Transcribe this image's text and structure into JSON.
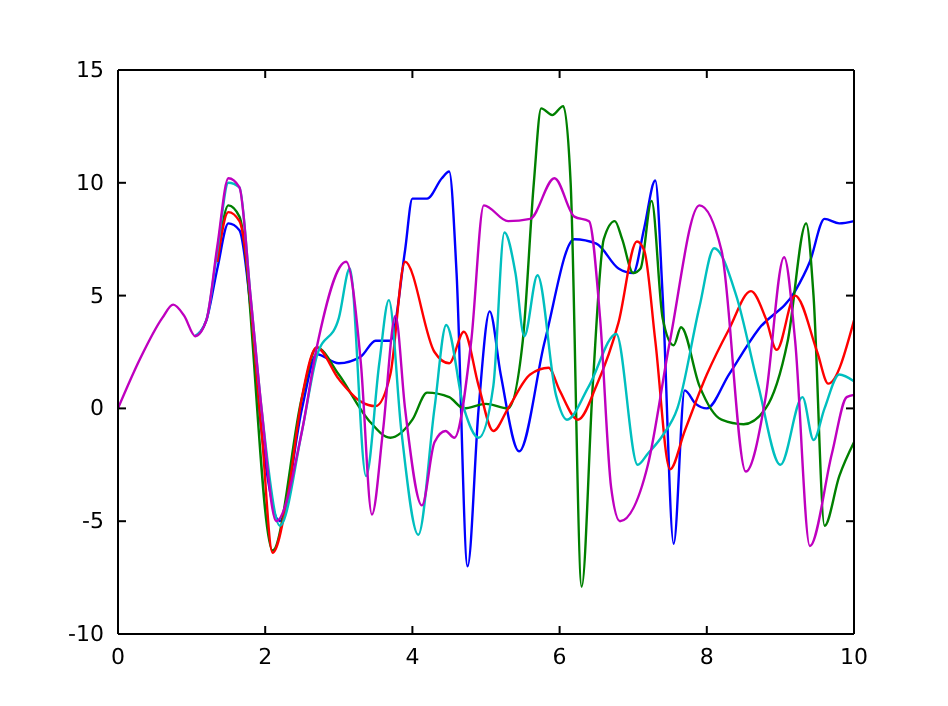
{
  "chart_data": {
    "type": "line",
    "xlim": [
      0,
      10
    ],
    "xticks": [
      0,
      2,
      4,
      6,
      8,
      10
    ],
    "ylim": [
      -10,
      15
    ],
    "yticks": [
      -10,
      -5,
      0,
      5,
      10,
      15
    ],
    "grid": false,
    "marker": "none",
    "line_style": "solid",
    "series": [
      {
        "color": "#0000ff",
        "x": [
          1.05,
          1.2,
          1.35,
          1.5,
          1.65,
          1.8,
          1.95,
          2.2,
          2.5,
          2.7,
          3.0,
          3.3,
          3.5,
          3.7,
          3.9,
          4.0,
          4.2,
          4.4,
          4.5,
          4.6,
          4.75,
          4.9,
          5.05,
          5.2,
          5.45,
          5.8,
          6.2,
          6.5,
          6.8,
          7.0,
          7.15,
          7.3,
          7.4,
          7.55,
          7.7,
          7.85,
          8.0,
          8.3,
          8.7,
          9.2,
          9.4,
          9.6,
          9.8,
          10
        ],
        "values": [
          3.2,
          3.9,
          6.2,
          8.2,
          7.9,
          4.5,
          -1,
          -5,
          0,
          2.4,
          2.0,
          2.3,
          3.0,
          3.0,
          7,
          9.3,
          9.3,
          10.2,
          10.5,
          6,
          -7,
          0,
          4.3,
          1.5,
          -1.9,
          3,
          7.5,
          7.3,
          6.2,
          6.0,
          8.0,
          10.1,
          5,
          -6,
          0.8,
          0.2,
          0.0,
          1.5,
          3.5,
          5.2,
          6.5,
          8.4,
          8.2,
          8.3
        ]
      },
      {
        "color": "#008000",
        "x": [
          1.35,
          1.5,
          1.65,
          2.1,
          2.5,
          2.7,
          3.0,
          3.4,
          3.7,
          4.0,
          4.2,
          4.5,
          4.7,
          5.0,
          5.3,
          5.5,
          5.65,
          5.75,
          5.9,
          6.05,
          6.15,
          6.3,
          6.45,
          6.6,
          6.75,
          6.85,
          7.0,
          7.1,
          7.25,
          7.4,
          7.55,
          7.65,
          7.9,
          8.2,
          8.5,
          8.8,
          9.1,
          9.35,
          9.45,
          9.6,
          9.8,
          10
        ],
        "values": [
          6.5,
          9.0,
          8.5,
          -6.3,
          0.5,
          2.7,
          1.5,
          -0.5,
          -1.3,
          -0.5,
          0.7,
          0.5,
          0,
          0.2,
          0,
          3,
          10,
          13.3,
          13.0,
          13.4,
          10,
          -7.9,
          1,
          7.5,
          8.3,
          7.5,
          6.0,
          6.2,
          9.2,
          4,
          2.8,
          3.6,
          1.0,
          -0.5,
          -0.7,
          0,
          3,
          8.2,
          5,
          -5.2,
          -3,
          -1.5
        ]
      },
      {
        "color": "#ff0000",
        "x": [
          1.35,
          1.5,
          1.65,
          1.95,
          2.1,
          2.3,
          2.5,
          2.7,
          3.0,
          3.3,
          3.5,
          3.7,
          3.9,
          4.3,
          4.5,
          4.7,
          4.9,
          5.1,
          5.3,
          5.6,
          5.85,
          6.0,
          6.25,
          6.5,
          6.8,
          7.05,
          7.15,
          7.3,
          7.5,
          7.7,
          8.0,
          8.3,
          8.6,
          8.8,
          8.95,
          9.2,
          9.5,
          9.65,
          10
        ],
        "values": [
          6.5,
          8.7,
          8.3,
          -1,
          -6.4,
          -4,
          0.5,
          2.7,
          1.3,
          0.3,
          0.1,
          1.5,
          6.5,
          2.5,
          2.0,
          3.4,
          1.0,
          -1.0,
          0,
          1.5,
          1.8,
          0.8,
          -0.5,
          1,
          3.8,
          7.4,
          7.0,
          3,
          -2.7,
          -1,
          1.5,
          3.5,
          5.2,
          4,
          2.6,
          5.0,
          2.5,
          1.1,
          3.9
        ]
      },
      {
        "color": "#00bfbf",
        "x": [
          1.05,
          1.2,
          1.35,
          1.5,
          1.65,
          1.8,
          1.95,
          2.2,
          2.5,
          2.7,
          3.0,
          3.15,
          3.37,
          3.55,
          3.68,
          3.85,
          4.08,
          4.3,
          4.46,
          4.7,
          4.9,
          5.1,
          5.25,
          5.4,
          5.52,
          5.7,
          5.95,
          6.1,
          6.4,
          6.77,
          7.06,
          7.2,
          7.4,
          7.6,
          7.9,
          8.1,
          8.4,
          8.7,
          9.0,
          9.3,
          9.45,
          9.6,
          9.8,
          10
        ],
        "values": [
          3.2,
          3.9,
          7,
          10,
          9.8,
          5,
          0,
          -5.2,
          -1,
          2.3,
          4,
          6.2,
          -3.0,
          2,
          4.8,
          -1,
          -5.6,
          0,
          3.7,
          0,
          -1.3,
          1,
          7.8,
          6,
          3.2,
          5.9,
          0.6,
          -0.5,
          1,
          3.3,
          -2.5,
          -2,
          -1.2,
          0,
          4.5,
          7.1,
          5,
          1,
          -2.5,
          0.5,
          -1.4,
          0,
          1.5,
          1.2
        ]
      },
      {
        "color": "#bf00bf",
        "x": [
          0,
          0.3,
          0.6,
          0.75,
          0.9,
          1.05,
          1.2,
          1.35,
          1.5,
          1.65,
          1.8,
          1.95,
          2.15,
          2.5,
          2.7,
          3.1,
          3.3,
          3.45,
          3.6,
          3.77,
          3.9,
          4.13,
          4.3,
          4.45,
          4.57,
          4.8,
          4.97,
          5.3,
          5.6,
          5.93,
          6.2,
          6.4,
          6.55,
          6.7,
          6.82,
          7.2,
          7.5,
          7.9,
          8.2,
          8.53,
          8.8,
          9.05,
          9.2,
          9.4,
          9.7,
          9.9,
          10
        ],
        "values": [
          0,
          2.2,
          4.0,
          4.6,
          4.1,
          3.2,
          3.9,
          7.2,
          10.2,
          9.8,
          5,
          0,
          -5,
          -1,
          2.7,
          6.5,
          2,
          -4.7,
          -1,
          4.1,
          0,
          -4.3,
          -1.5,
          -1.0,
          -1.3,
          3,
          9.0,
          8.3,
          8.4,
          10.2,
          8.5,
          8.3,
          4,
          -3.5,
          -5.0,
          -2.5,
          3,
          9.0,
          7,
          -2.8,
          0.5,
          6.7,
          3,
          -6.1,
          -2,
          0.5,
          0.6
        ]
      }
    ]
  }
}
